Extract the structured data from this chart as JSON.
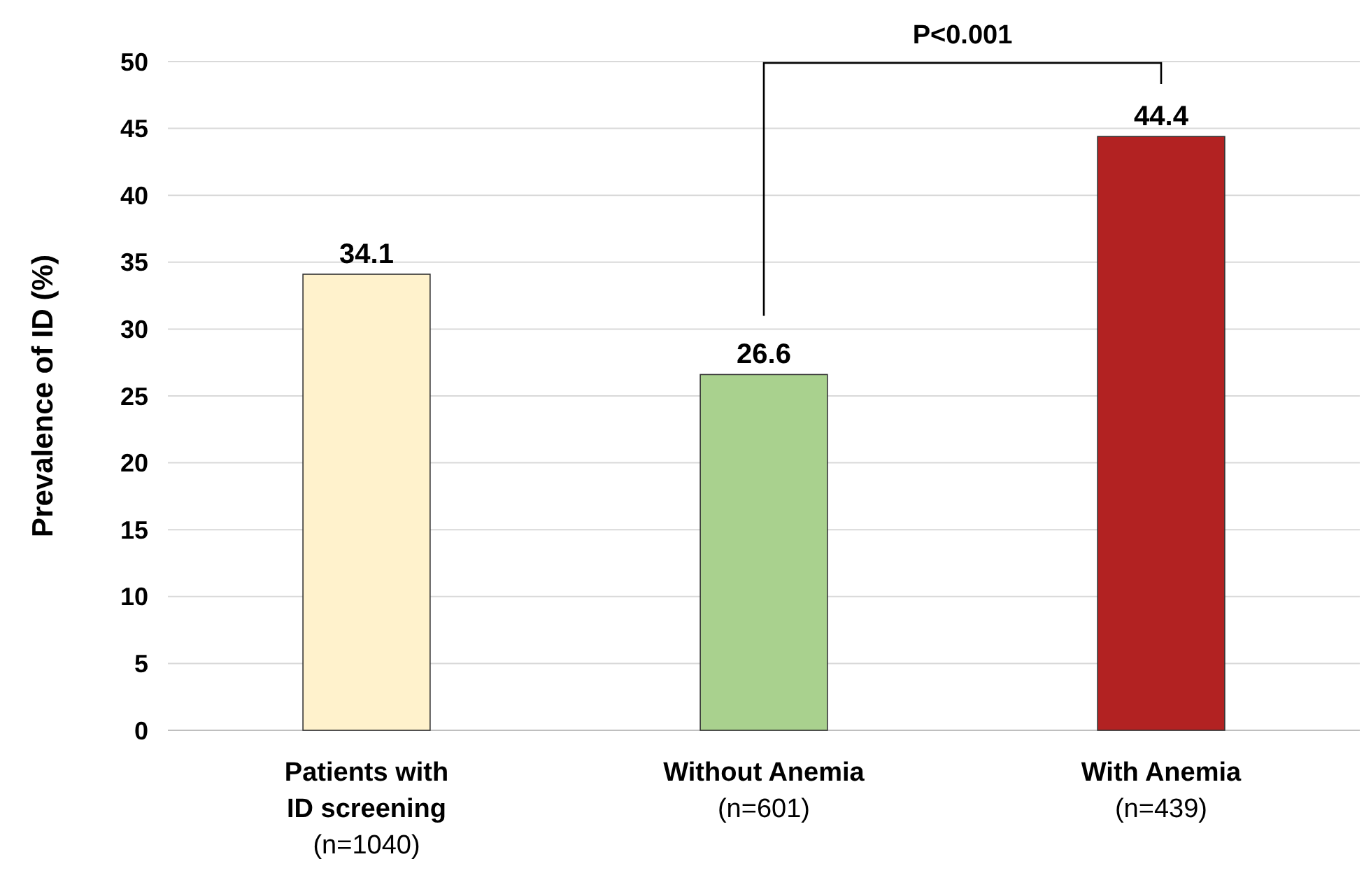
{
  "chart_data": {
    "type": "bar",
    "ylabel": "Prevalence of ID (%)",
    "categories": [
      "Patients with\nID screening\n(n=1040)",
      "Without Anemia\n(n=601)",
      "With Anemia\n(n=439)"
    ],
    "values": [
      34.1,
      26.6,
      44.4
    ],
    "colors": [
      "#fff2cc",
      "#a9d18e",
      "#b22222"
    ],
    "ylim": [
      0,
      50
    ],
    "yticks": [
      0,
      5,
      10,
      15,
      20,
      25,
      30,
      35,
      40,
      45,
      50
    ],
    "grid": "y",
    "data_labels": true,
    "annotations": [
      "P<0.001"
    ]
  }
}
